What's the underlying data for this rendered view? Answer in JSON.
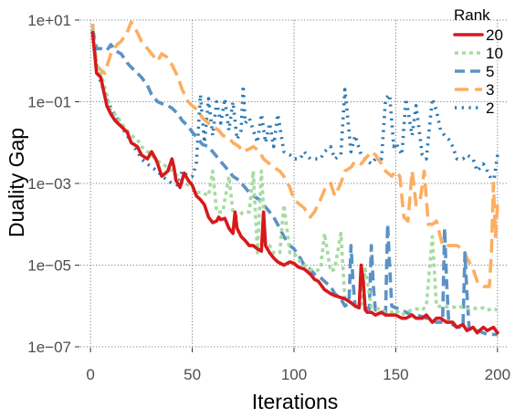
{
  "chart_data": {
    "type": "line",
    "xlabel": "Iterations",
    "ylabel": "Duality Gap",
    "xlim": [
      -5,
      205
    ],
    "ylim": [
      1e-07,
      10
    ],
    "yscale": "log",
    "x_ticks": [
      0,
      50,
      100,
      150,
      200
    ],
    "x_tick_labels": [
      "0",
      "50",
      "100",
      "150",
      "200"
    ],
    "y_ticks": [
      1e-07,
      1e-05,
      0.001,
      0.1,
      10
    ],
    "y_tick_labels": [
      "1e−07",
      "1e−05",
      "1e−03",
      "1e−01",
      "1e+01"
    ],
    "grid": true,
    "legend": {
      "title": "Rank",
      "position": "top-right"
    },
    "series": [
      {
        "name": "20",
        "color": "#d7191c",
        "dash": "solid",
        "x": [
          1,
          3,
          5,
          8,
          10,
          12,
          15,
          18,
          20,
          23,
          25,
          28,
          30,
          32,
          33,
          35,
          38,
          40,
          41,
          42,
          44,
          46,
          48,
          50,
          52,
          54,
          56,
          58,
          60,
          62,
          63,
          64,
          66,
          68,
          70,
          71,
          72,
          74,
          76,
          78,
          80,
          82,
          84,
          85,
          86,
          88,
          90,
          92,
          95,
          98,
          100,
          102,
          105,
          108,
          110,
          112,
          115,
          118,
          120,
          123,
          125,
          128,
          130,
          132,
          133,
          134,
          135,
          136,
          138,
          140,
          143,
          145,
          148,
          150,
          153,
          155,
          158,
          160,
          163,
          165,
          168,
          170,
          172,
          175,
          178,
          180,
          183,
          185,
          188,
          190,
          193,
          195,
          198,
          200
        ],
        "y": [
          5,
          0.5,
          0.4,
          0.08,
          0.05,
          0.035,
          0.025,
          0.018,
          0.01,
          0.008,
          0.005,
          0.004,
          0.006,
          0.004,
          0.003,
          0.0015,
          0.002,
          0.004,
          0.0025,
          0.0012,
          0.0008,
          0.0018,
          0.0012,
          0.0009,
          0.0005,
          0.0004,
          0.0003,
          0.00015,
          0.00011,
          0.00012,
          0.00015,
          0.00013,
          0.00014,
          8e-05,
          6e-05,
          0.0002,
          8e-05,
          5e-05,
          4e-05,
          3e-05,
          3e-05,
          2.5e-05,
          2.2e-05,
          0.0002,
          3e-05,
          2e-05,
          1.5e-05,
          1.2e-05,
          1e-05,
          1.2e-05,
          1.1e-05,
          9e-06,
          8e-06,
          6e-06,
          4.5e-06,
          4e-06,
          2.5e-06,
          2e-06,
          1.8e-06,
          1.6e-06,
          1.5e-06,
          1.2e-06,
          1e-06,
          9e-07,
          1e-05,
          4e-06,
          8e-07,
          7e-07,
          7e-07,
          6e-07,
          7e-07,
          6e-07,
          6e-07,
          6e-07,
          5e-07,
          5e-07,
          6e-07,
          5e-07,
          5e-07,
          6e-07,
          4e-07,
          5e-07,
          5e-07,
          4e-07,
          4e-07,
          3e-07,
          3.5e-07,
          2.5e-07,
          3e-07,
          2.2e-07,
          3e-07,
          2.5e-07,
          3e-07,
          2.2e-07
        ]
      },
      {
        "name": "10",
        "color": "#a6dba0",
        "dash": "dotted",
        "x": [
          1,
          3,
          5,
          8,
          10,
          13,
          15,
          18,
          20,
          23,
          25,
          28,
          30,
          32,
          35,
          38,
          40,
          43,
          45,
          48,
          50,
          52,
          55,
          58,
          60,
          62,
          65,
          68,
          70,
          72,
          75,
          78,
          80,
          82,
          84,
          86,
          88,
          90,
          93,
          95,
          98,
          100,
          103,
          105,
          108,
          110,
          113,
          115,
          118,
          120,
          123,
          125,
          128,
          130,
          133,
          135,
          138,
          140,
          143,
          145,
          148,
          150,
          153,
          155,
          158,
          160,
          163,
          165,
          168,
          170,
          173,
          175,
          178,
          180,
          182,
          185,
          188,
          190,
          193,
          195,
          198,
          200
        ],
        "y": [
          6,
          0.8,
          0.5,
          0.15,
          0.06,
          0.045,
          0.03,
          0.02,
          0.015,
          0.012,
          0.008,
          0.006,
          0.005,
          0.004,
          0.003,
          0.0025,
          0.002,
          0.0015,
          0.0012,
          0.0009,
          0.0008,
          0.0006,
          0.0006,
          0.0005,
          0.002,
          0.0002,
          0.0002,
          0.0015,
          0.0002,
          0.00015,
          0.0002,
          0.0002,
          0.002,
          2e-05,
          0.002,
          3e-05,
          3e-05,
          2e-05,
          2e-05,
          0.0003,
          2e-05,
          2e-05,
          1.2e-05,
          1e-05,
          8e-06,
          7e-06,
          8e-06,
          6e-05,
          7e-06,
          8e-06,
          6e-05,
          1.5e-06,
          1.2e-06,
          1e-06,
          1e-06,
          8e-06,
          9.5e-07,
          9e-07,
          8e-07,
          7e-07,
          7e-07,
          8e-07,
          6e-07,
          7e-07,
          8e-07,
          8.5e-07,
          8e-07,
          1e-06,
          5e-05,
          1e-06,
          9.5e-07,
          9.5e-07,
          9.5e-07,
          9e-07,
          9.5e-07,
          8.5e-07,
          9e-07,
          8.5e-07,
          9e-07,
          8e-07,
          8.5e-07,
          8e-07
        ]
      },
      {
        "name": "5",
        "color": "#5b92c6",
        "dash": "dashed",
        "x": [
          1,
          3,
          5,
          8,
          10,
          12,
          15,
          18,
          20,
          23,
          25,
          28,
          30,
          33,
          35,
          38,
          40,
          43,
          45,
          48,
          50,
          53,
          55,
          58,
          60,
          63,
          65,
          68,
          70,
          73,
          75,
          78,
          80,
          83,
          85,
          88,
          90,
          93,
          95,
          98,
          100,
          103,
          105,
          108,
          110,
          113,
          115,
          118,
          120,
          123,
          125,
          127,
          128,
          129,
          130,
          133,
          135,
          137,
          138,
          139,
          140,
          143,
          145,
          146,
          147,
          148,
          150,
          153,
          155,
          158,
          160,
          163,
          165,
          168,
          170,
          173,
          174,
          175,
          176,
          178,
          180,
          183,
          184,
          185,
          186,
          188,
          190,
          193,
          195,
          198,
          200
        ],
        "y": [
          6,
          2,
          2,
          1.8,
          2.5,
          1.8,
          1.5,
          0.9,
          0.7,
          0.5,
          0.4,
          0.25,
          0.15,
          0.1,
          0.09,
          0.08,
          0.07,
          0.05,
          0.035,
          0.025,
          0.018,
          0.012,
          0.009,
          0.008,
          0.006,
          0.004,
          0.003,
          0.002,
          0.0015,
          0.0012,
          0.0009,
          0.0006,
          0.0005,
          0.0004,
          0.0003,
          0.0002,
          0.00015,
          8e-05,
          5e-05,
          3e-05,
          2.5e-05,
          1.5e-05,
          1e-05,
          8e-06,
          6e-06,
          5e-06,
          4e-06,
          3e-06,
          2e-06,
          1.5e-06,
          1e-06,
          1.2e-06,
          3e-05,
          4e-06,
          1e-06,
          9.5e-07,
          9e-07,
          8.5e-07,
          3e-05,
          3e-06,
          8e-07,
          7.5e-07,
          7e-07,
          0.0001,
          1e-05,
          1e-06,
          9e-07,
          8e-07,
          7e-07,
          6e-07,
          6e-07,
          5.5e-07,
          5e-07,
          4.5e-07,
          4e-07,
          4e-07,
          8e-05,
          4e-06,
          4e-07,
          3.5e-07,
          3e-07,
          3e-07,
          2e-05,
          2e-06,
          3e-07,
          2.5e-07,
          2.5e-07,
          2.2e-07,
          2e-07,
          2e-07,
          2e-07
        ]
      },
      {
        "name": "3",
        "color": "#fdae61",
        "dash": "longdash",
        "x": [
          1,
          3,
          5,
          7,
          10,
          13,
          15,
          18,
          20,
          23,
          25,
          28,
          30,
          33,
          35,
          38,
          40,
          43,
          45,
          48,
          50,
          53,
          55,
          58,
          60,
          63,
          65,
          68,
          70,
          73,
          75,
          78,
          80,
          83,
          85,
          88,
          90,
          93,
          95,
          98,
          100,
          103,
          105,
          108,
          110,
          113,
          115,
          118,
          120,
          123,
          125,
          128,
          130,
          133,
          135,
          138,
          140,
          143,
          145,
          148,
          150,
          152,
          154,
          156,
          158,
          160,
          162,
          164,
          166,
          168,
          170,
          173,
          175,
          178,
          180,
          183,
          185,
          188,
          190,
          193,
          195,
          196,
          197,
          198,
          199,
          200
        ],
        "y": [
          8,
          0.8,
          0.6,
          0.5,
          1.5,
          2.5,
          3,
          5,
          9,
          5,
          3,
          2,
          1.5,
          1,
          1.5,
          1.2,
          0.8,
          0.4,
          0.2,
          0.1,
          0.08,
          0.06,
          0.04,
          0.03,
          0.025,
          0.02,
          0.015,
          0.013,
          0.01,
          0.008,
          0.006,
          0.007,
          0.008,
          0.006,
          0.004,
          0.003,
          0.0025,
          0.002,
          0.0015,
          0.0008,
          0.0004,
          0.0003,
          0.00025,
          0.00015,
          0.0002,
          0.0004,
          0.0007,
          0.001,
          0.0005,
          0.001,
          0.002,
          0.0025,
          0.0035,
          0.003,
          0.004,
          0.006,
          0.005,
          0.003,
          0.002,
          0.0015,
          0.002,
          0.0015,
          0.00015,
          0.00012,
          0.002,
          0.0003,
          0.0004,
          0.002,
          0.0001,
          0.0001,
          0.00012,
          3e-05,
          3e-05,
          3e-05,
          3e-05,
          2.5e-05,
          1.5e-05,
          8e-06,
          4e-06,
          3e-06,
          3e-06,
          3e-06,
          2e-05,
          0.001,
          5e-05,
          0.0003
        ]
      },
      {
        "name": "2",
        "color": "#2c7bb6",
        "dash": "densedot",
        "x": [
          1,
          3,
          5,
          8,
          10,
          13,
          15,
          18,
          20,
          23,
          25,
          28,
          30,
          33,
          35,
          38,
          40,
          43,
          45,
          48,
          50,
          52,
          54,
          56,
          58,
          60,
          62,
          64,
          66,
          68,
          70,
          72,
          74,
          75,
          76,
          78,
          80,
          82,
          84,
          86,
          88,
          90,
          92,
          95,
          98,
          100,
          103,
          105,
          108,
          110,
          113,
          115,
          118,
          120,
          123,
          125,
          128,
          130,
          133,
          135,
          138,
          140,
          143,
          145,
          147,
          149,
          150,
          153,
          155,
          158,
          160,
          163,
          165,
          168,
          170,
          172,
          174,
          176,
          178,
          180,
          183,
          185,
          188,
          190,
          193,
          195,
          198,
          200
        ],
        "y": [
          8,
          0.6,
          0.3,
          0.12,
          0.07,
          0.04,
          0.025,
          0.015,
          0.01,
          0.006,
          0.004,
          0.003,
          0.0025,
          0.002,
          0.0015,
          0.0012,
          0.001,
          0.0009,
          0.002,
          0.0015,
          0.0015,
          0.003,
          0.15,
          0.01,
          0.12,
          0.015,
          0.1,
          0.03,
          0.12,
          0.02,
          0.1,
          0.012,
          0.02,
          0.25,
          0.03,
          0.04,
          0.02,
          0.01,
          0.05,
          0.01,
          0.03,
          0.008,
          0.05,
          0.006,
          0.005,
          0.004,
          0.004,
          0.006,
          0.004,
          0.004,
          0.004,
          0.006,
          0.008,
          0.004,
          0.005,
          0.2,
          0.006,
          0.015,
          0.005,
          0.004,
          0.003,
          0.004,
          0.004,
          0.12,
          0.15,
          0.008,
          0.01,
          0.005,
          0.12,
          0.015,
          0.08,
          0.005,
          0.004,
          0.12,
          0.06,
          0.02,
          0.015,
          0.012,
          0.008,
          0.004,
          0.004,
          0.005,
          0.004,
          0.002,
          0.003,
          0.002,
          0.001,
          0.005
        ]
      }
    ]
  }
}
